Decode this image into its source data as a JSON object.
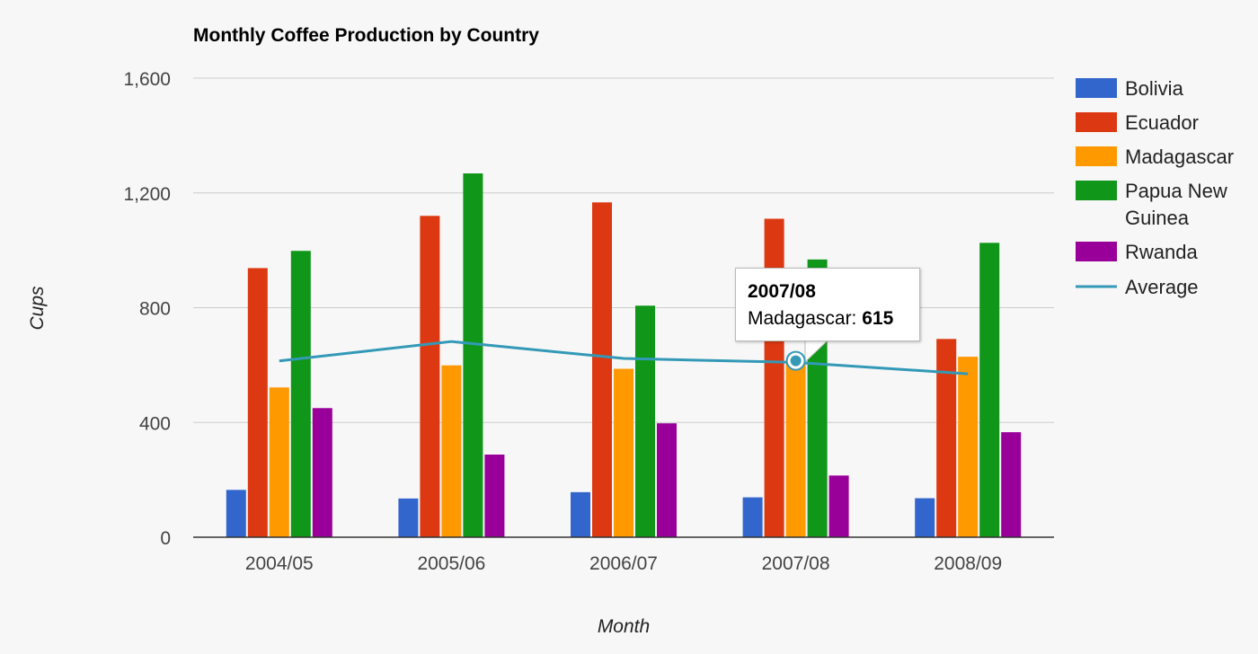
{
  "chart_data": {
    "type": "bar",
    "title": "Monthly Coffee Production by Country",
    "xlabel": "Month",
    "ylabel": "Cups",
    "ylim": [
      0,
      1600
    ],
    "yticks": [
      0,
      400,
      800,
      1200,
      1600
    ],
    "ytick_labels": [
      "0",
      "400",
      "800",
      "1,200",
      "1,600"
    ],
    "categories": [
      "2004/05",
      "2005/06",
      "2006/07",
      "2007/08",
      "2008/09"
    ],
    "series": [
      {
        "name": "Bolivia",
        "type": "bar",
        "color": "#3366cc",
        "values": [
          165,
          135,
          157,
          139,
          136
        ]
      },
      {
        "name": "Ecuador",
        "type": "bar",
        "color": "#dc3912",
        "values": [
          938,
          1120,
          1167,
          1110,
          691
        ]
      },
      {
        "name": "Madagascar",
        "type": "bar",
        "color": "#ff9900",
        "values": [
          522,
          599,
          587,
          615,
          629
        ]
      },
      {
        "name": "Papua New Guinea",
        "type": "bar",
        "color": "#109618",
        "values": [
          998,
          1268,
          807,
          968,
          1026
        ]
      },
      {
        "name": "Rwanda",
        "type": "bar",
        "color": "#990099",
        "values": [
          450,
          288,
          397,
          215,
          366
        ]
      },
      {
        "name": "Average",
        "type": "line",
        "color": "#3399b7",
        "values": [
          614.6,
          682,
          623,
          609.4,
          569.6
        ]
      }
    ],
    "legend": {
      "position": "right",
      "entries": [
        {
          "lines": [
            "Bolivia"
          ]
        },
        {
          "lines": [
            "Ecuador"
          ]
        },
        {
          "lines": [
            "Madagascar"
          ]
        },
        {
          "lines": [
            "Papua New",
            "Guinea"
          ]
        },
        {
          "lines": [
            "Rwanda"
          ]
        },
        {
          "lines": [
            "Average"
          ]
        }
      ]
    },
    "grid": true,
    "tooltip": {
      "category": "2007/08",
      "series": "Madagascar",
      "label": "Madagascar: ",
      "value": "615"
    }
  }
}
